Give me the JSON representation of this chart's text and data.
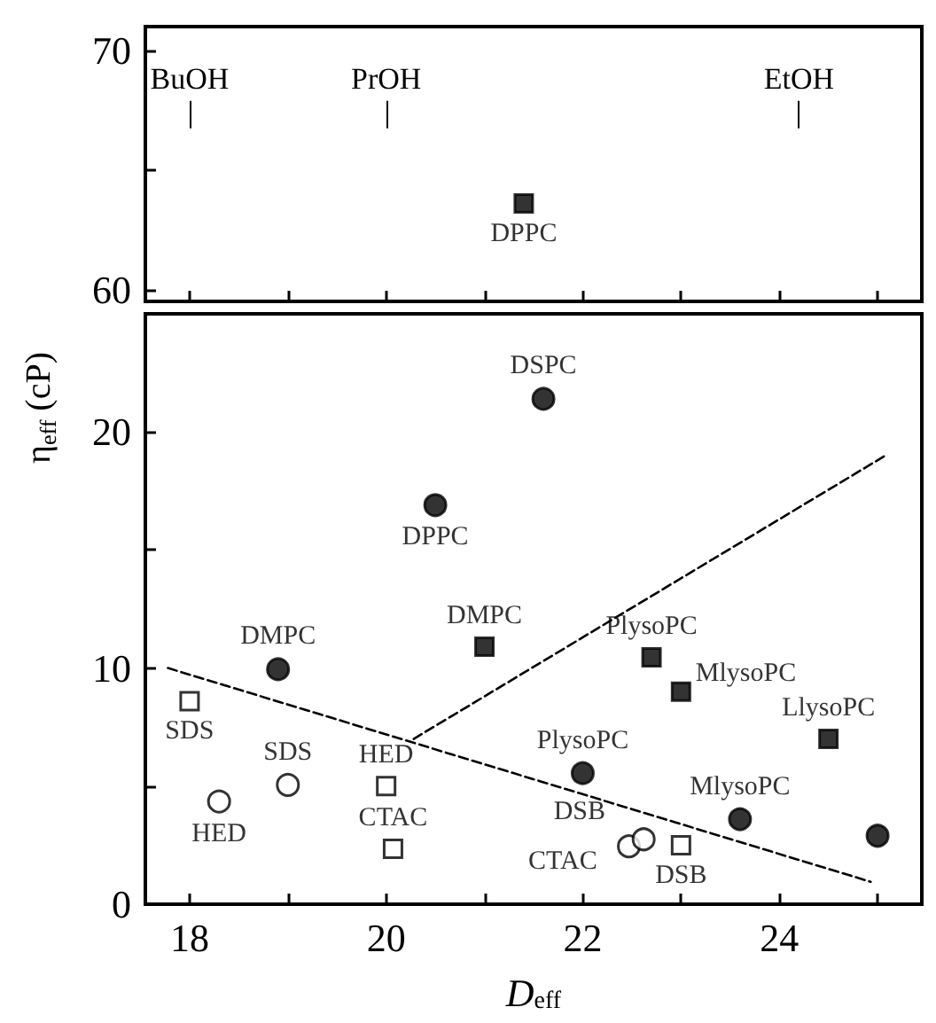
{
  "chart_data": [
    {
      "type": "scatter",
      "xlim": [
        17.55,
        25.45
      ],
      "xticks": [
        18,
        {
          "value": 19,
          "label": null
        },
        20,
        {
          "value": 21,
          "label": null
        },
        22,
        {
          "value": 23,
          "label": null
        },
        24,
        {
          "value": 25,
          "label": null
        }
      ],
      "ylim": [
        59.5,
        71
      ],
      "yticks": [
        60,
        {
          "value": 65,
          "label": null
        },
        70
      ],
      "tick_labels": "y",
      "grid": false,
      "series": [
        {
          "marker": "square",
          "color": "#000000",
          "x": [
            21.4
          ],
          "values": [
            63.6
          ],
          "value_labels": [
            "DPPC"
          ]
        }
      ],
      "ref_lines": [
        {
          "axis": "x",
          "value": 18.0,
          "label": "BuOH"
        },
        {
          "axis": "x",
          "value": 20.0,
          "label": "PrOH"
        },
        {
          "axis": "x",
          "value": 24.2,
          "label": "EtOH"
        }
      ]
    },
    {
      "type": "scatter",
      "xlabel": "D$_{eff}$",
      "ylabel": "η$_{eff}$ (cP)",
      "xlim": [
        17.55,
        25.45
      ],
      "xticks": [
        18,
        {
          "value": 19,
          "label": null
        },
        20,
        {
          "value": 21,
          "label": null
        },
        22,
        {
          "value": 23,
          "label": null
        },
        24,
        {
          "value": 25,
          "label": null
        }
      ],
      "ylim": [
        0,
        25
      ],
      "yticks": [
        0,
        {
          "value": 5,
          "label": null
        },
        10,
        {
          "value": 15,
          "label": null
        },
        20
      ],
      "grid": false,
      "series": [
        {
          "marker": "circle",
          "color": "#ffffff",
          "x": [
            18.3,
            19.0,
            22.47,
            22.62
          ],
          "values": [
            4.35,
            5.05,
            2.45,
            2.75
          ],
          "value_labels": [
            "HED",
            "SDS",
            "CTAC",
            "DSB"
          ]
        },
        {
          "marker": "square",
          "color": "#ffffff",
          "x": [
            18.0,
            20.0,
            20.07,
            23.0
          ],
          "values": [
            8.6,
            5.0,
            2.35,
            2.5
          ],
          "value_labels": [
            "SDS",
            "HED",
            "CTAC",
            "DSB"
          ]
        },
        {
          "marker": "circle",
          "color": "#000000",
          "x": [
            22.0,
            23.6,
            25.0
          ],
          "values": [
            5.55,
            3.6,
            2.9
          ],
          "value_labels": [
            "PlysoPC",
            "MlysoPC",
            null
          ]
        },
        {
          "marker": "square",
          "color": "#000000",
          "x": [
            22.7,
            23.0,
            24.5
          ],
          "values": [
            10.45,
            9.0,
            7.0
          ],
          "value_labels": [
            "PlysoPC",
            "MlysoPC",
            "LlysoPC"
          ]
        },
        {
          "marker": "circle",
          "color": "#000000",
          "x": [
            18.9,
            20.5,
            21.6
          ],
          "values": [
            9.95,
            16.9,
            21.4
          ],
          "value_labels": [
            "DMPC",
            "DPPC",
            "DSPC"
          ]
        },
        {
          "marker": "square",
          "color": "#000000",
          "x": [
            21.0
          ],
          "values": [
            10.9
          ],
          "value_labels": [
            "DMPC"
          ]
        },
        {
          "type": "line",
          "marker": "none",
          "line_style": "dashed",
          "color": "#000000",
          "x": [
            17.78,
            24.93
          ],
          "values": [
            10.0,
            0.95
          ]
        },
        {
          "type": "line",
          "marker": "none",
          "line_style": "dashed",
          "color": "#000000",
          "x": [
            20.28,
            25.08
          ],
          "values": [
            7.0,
            19.0
          ]
        }
      ]
    }
  ]
}
